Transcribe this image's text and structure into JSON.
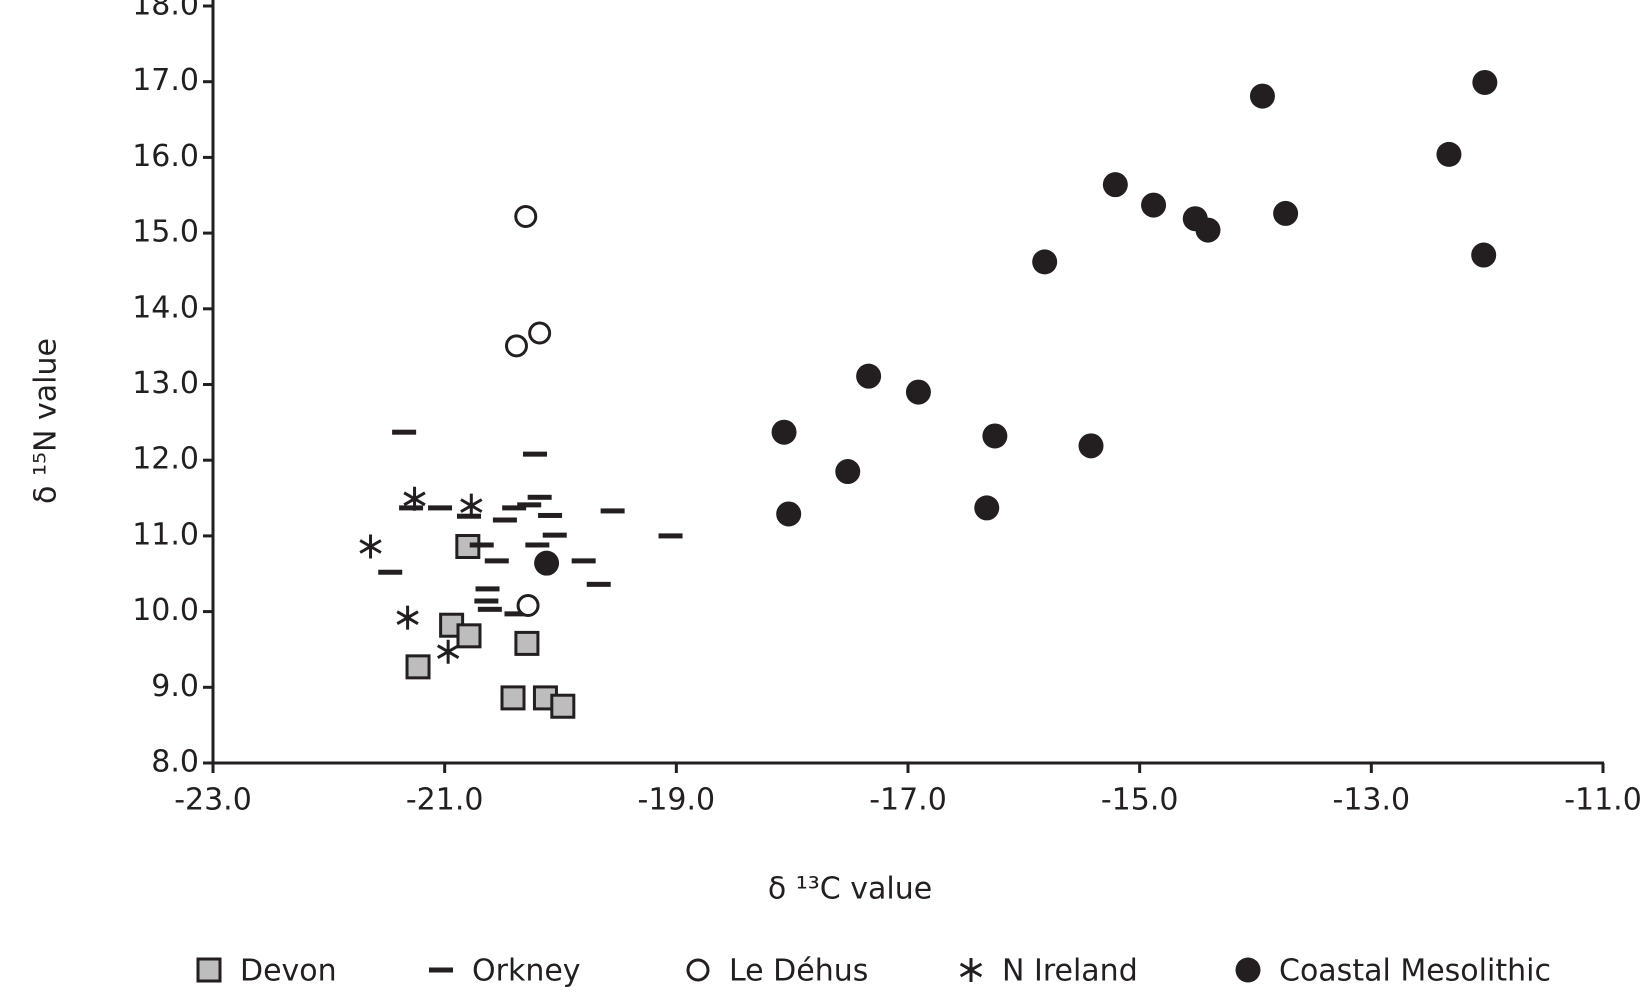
{
  "chart_data": {
    "type": "scatter",
    "xlabel": "δ ¹³C value",
    "ylabel": "δ ¹⁵N value",
    "xlim": [
      -23,
      -11
    ],
    "ylim": [
      8,
      18
    ],
    "xticks": [
      {
        "value": -23,
        "label": "-23.0"
      },
      {
        "value": -21,
        "label": "-21.0"
      },
      {
        "value": -19,
        "label": "-19.0"
      },
      {
        "value": -17,
        "label": "-17.0"
      },
      {
        "value": -15,
        "label": "-15.0"
      },
      {
        "value": -13,
        "label": "-13.0"
      },
      {
        "value": -11,
        "label": "-11.0"
      }
    ],
    "yticks": [
      {
        "value": 8,
        "label": "8.0"
      },
      {
        "value": 9,
        "label": "9.0"
      },
      {
        "value": 10,
        "label": "10.0"
      },
      {
        "value": 11,
        "label": "11.0"
      },
      {
        "value": 12,
        "label": "12.0"
      },
      {
        "value": 13,
        "label": "13.0"
      },
      {
        "value": 14,
        "label": "14.0"
      },
      {
        "value": 15,
        "label": "15.0"
      },
      {
        "value": 16,
        "label": "16.0"
      },
      {
        "value": 17,
        "label": "17.0"
      },
      {
        "value": 18,
        "label": "18.0"
      }
    ],
    "series": [
      {
        "name": "Devon",
        "marker": "square",
        "color": "#bdbdbd",
        "x": [
          -20.8,
          -20.94,
          -20.79,
          -20.29,
          -21.23,
          -20.41,
          -20.13,
          -19.98
        ],
        "y": [
          10.86,
          9.82,
          9.68,
          9.58,
          9.27,
          8.86,
          8.86,
          8.75
        ]
      },
      {
        "name": "Orkney",
        "marker": "dash",
        "color": "#231f20",
        "x": [
          -21.35,
          -20.22,
          -21.29,
          -21.04,
          -20.79,
          -20.48,
          -20.4,
          -20.27,
          -20.18,
          -20.09,
          -19.55,
          -20.05,
          -19.05,
          -20.68,
          -20.55,
          -20.2,
          -19.8,
          -21.47,
          -19.67,
          -20.63,
          -20.64,
          -20.61,
          -20.38
        ],
        "y": [
          12.37,
          12.08,
          11.37,
          11.37,
          11.26,
          11.21,
          11.37,
          11.41,
          11.51,
          11.27,
          11.33,
          11.01,
          11.0,
          10.88,
          10.67,
          10.88,
          10.67,
          10.52,
          10.36,
          10.3,
          10.14,
          10.03,
          9.97
        ]
      },
      {
        "name": "Le Déhus",
        "marker": "open-circle",
        "color": "#231f20",
        "x": [
          -20.3,
          -20.38,
          -20.18,
          -20.28
        ],
        "y": [
          15.22,
          13.51,
          13.68,
          10.08
        ]
      },
      {
        "name": "N Ireland",
        "marker": "star",
        "color": "#231f20",
        "x": [
          -21.26,
          -20.77,
          -21.64,
          -21.32,
          -20.97
        ],
        "y": [
          11.49,
          11.4,
          10.86,
          9.92,
          9.47
        ]
      },
      {
        "name": "Coastal Mesolithic",
        "marker": "dot",
        "color": "#231f20",
        "x": [
          -12.02,
          -13.94,
          -12.33,
          -15.21,
          -14.88,
          -14.52,
          -14.41,
          -13.74,
          -12.03,
          -15.82,
          -17.34,
          -16.91,
          -18.07,
          -16.25,
          -15.42,
          -17.52,
          -16.32,
          -18.03,
          -20.12
        ],
        "y": [
          16.99,
          16.81,
          16.04,
          15.64,
          15.37,
          15.19,
          15.04,
          15.26,
          14.71,
          14.62,
          13.11,
          12.9,
          12.37,
          12.32,
          12.19,
          11.85,
          11.37,
          11.29,
          10.64
        ]
      }
    ]
  }
}
